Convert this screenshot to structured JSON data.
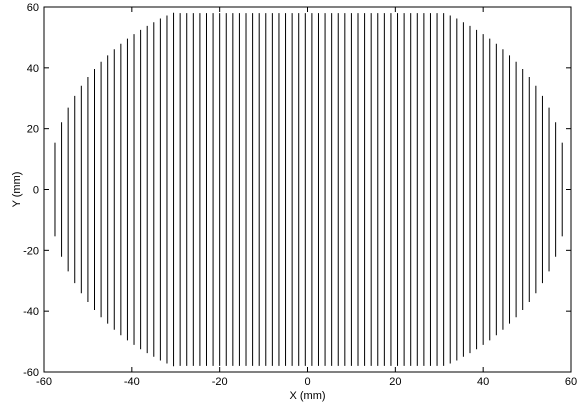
{
  "chart_data": {
    "type": "line",
    "title": "",
    "xlabel": "X (mm)",
    "ylabel": "Y (mm)",
    "xlim": [
      -60,
      60
    ],
    "ylim": [
      -60,
      60
    ],
    "xticks": [
      -60,
      -40,
      -20,
      0,
      20,
      40,
      60
    ],
    "yticks": [
      -60,
      -40,
      -20,
      0,
      20,
      40,
      60
    ],
    "xtick_labels": [
      "-60",
      "-40",
      "-20",
      "0",
      "20",
      "40",
      "60"
    ],
    "ytick_labels": [
      "-60",
      "-40",
      "-20",
      "0",
      "20",
      "40",
      "60"
    ],
    "grid": false,
    "line_color": "#000000",
    "series": [
      {
        "x": [
          -57.5,
          -56,
          -54.5,
          -53,
          -51.5,
          -50,
          -48.5,
          -47,
          -45.5,
          -44,
          -42.5,
          -41,
          -39.5,
          -38,
          -36.5,
          -35,
          -33.5,
          -32,
          -30.5,
          -29,
          -27.5,
          -26,
          -24.5,
          -23,
          -21.5,
          -20,
          -18.5,
          -17,
          -15.5,
          -14,
          -12.5,
          -11,
          -9.5,
          -8,
          -6.5,
          -5,
          -3.5,
          -2,
          -0.5,
          1,
          2.5,
          4,
          5.5,
          7,
          8.5,
          10,
          11.5,
          13,
          14.5,
          16,
          17.5,
          19,
          20.5,
          22,
          23.5,
          25,
          26.5,
          28,
          29.5,
          31,
          32.5,
          34,
          35.5,
          37,
          38.5,
          40,
          41.5,
          43,
          44.5,
          46,
          47.5,
          49,
          50.5,
          52,
          53.5,
          55,
          56.5,
          58
        ],
        "half_length": [
          15.4,
          22.1,
          26.9,
          30.8,
          34.1,
          37.0,
          39.6,
          42.0,
          44.1,
          46.1,
          47.9,
          49.6,
          51.1,
          52.5,
          53.8,
          55.0,
          56.2,
          57.2,
          58.1,
          58,
          58,
          58,
          58,
          58,
          58,
          58,
          58,
          58,
          58,
          58,
          58,
          58,
          58,
          58,
          58,
          58,
          58,
          58,
          58,
          58,
          58,
          58,
          58,
          58,
          58,
          58,
          58,
          58,
          58,
          58,
          58,
          58,
          58,
          58,
          58,
          58,
          58,
          58,
          58,
          58.0,
          57.2,
          56.2,
          55.0,
          53.8,
          52.5,
          51.1,
          49.6,
          47.9,
          46.1,
          44.1,
          42.0,
          39.6,
          37.0,
          34.1,
          30.8,
          26.9,
          22.1,
          15.4
        ]
      }
    ]
  }
}
